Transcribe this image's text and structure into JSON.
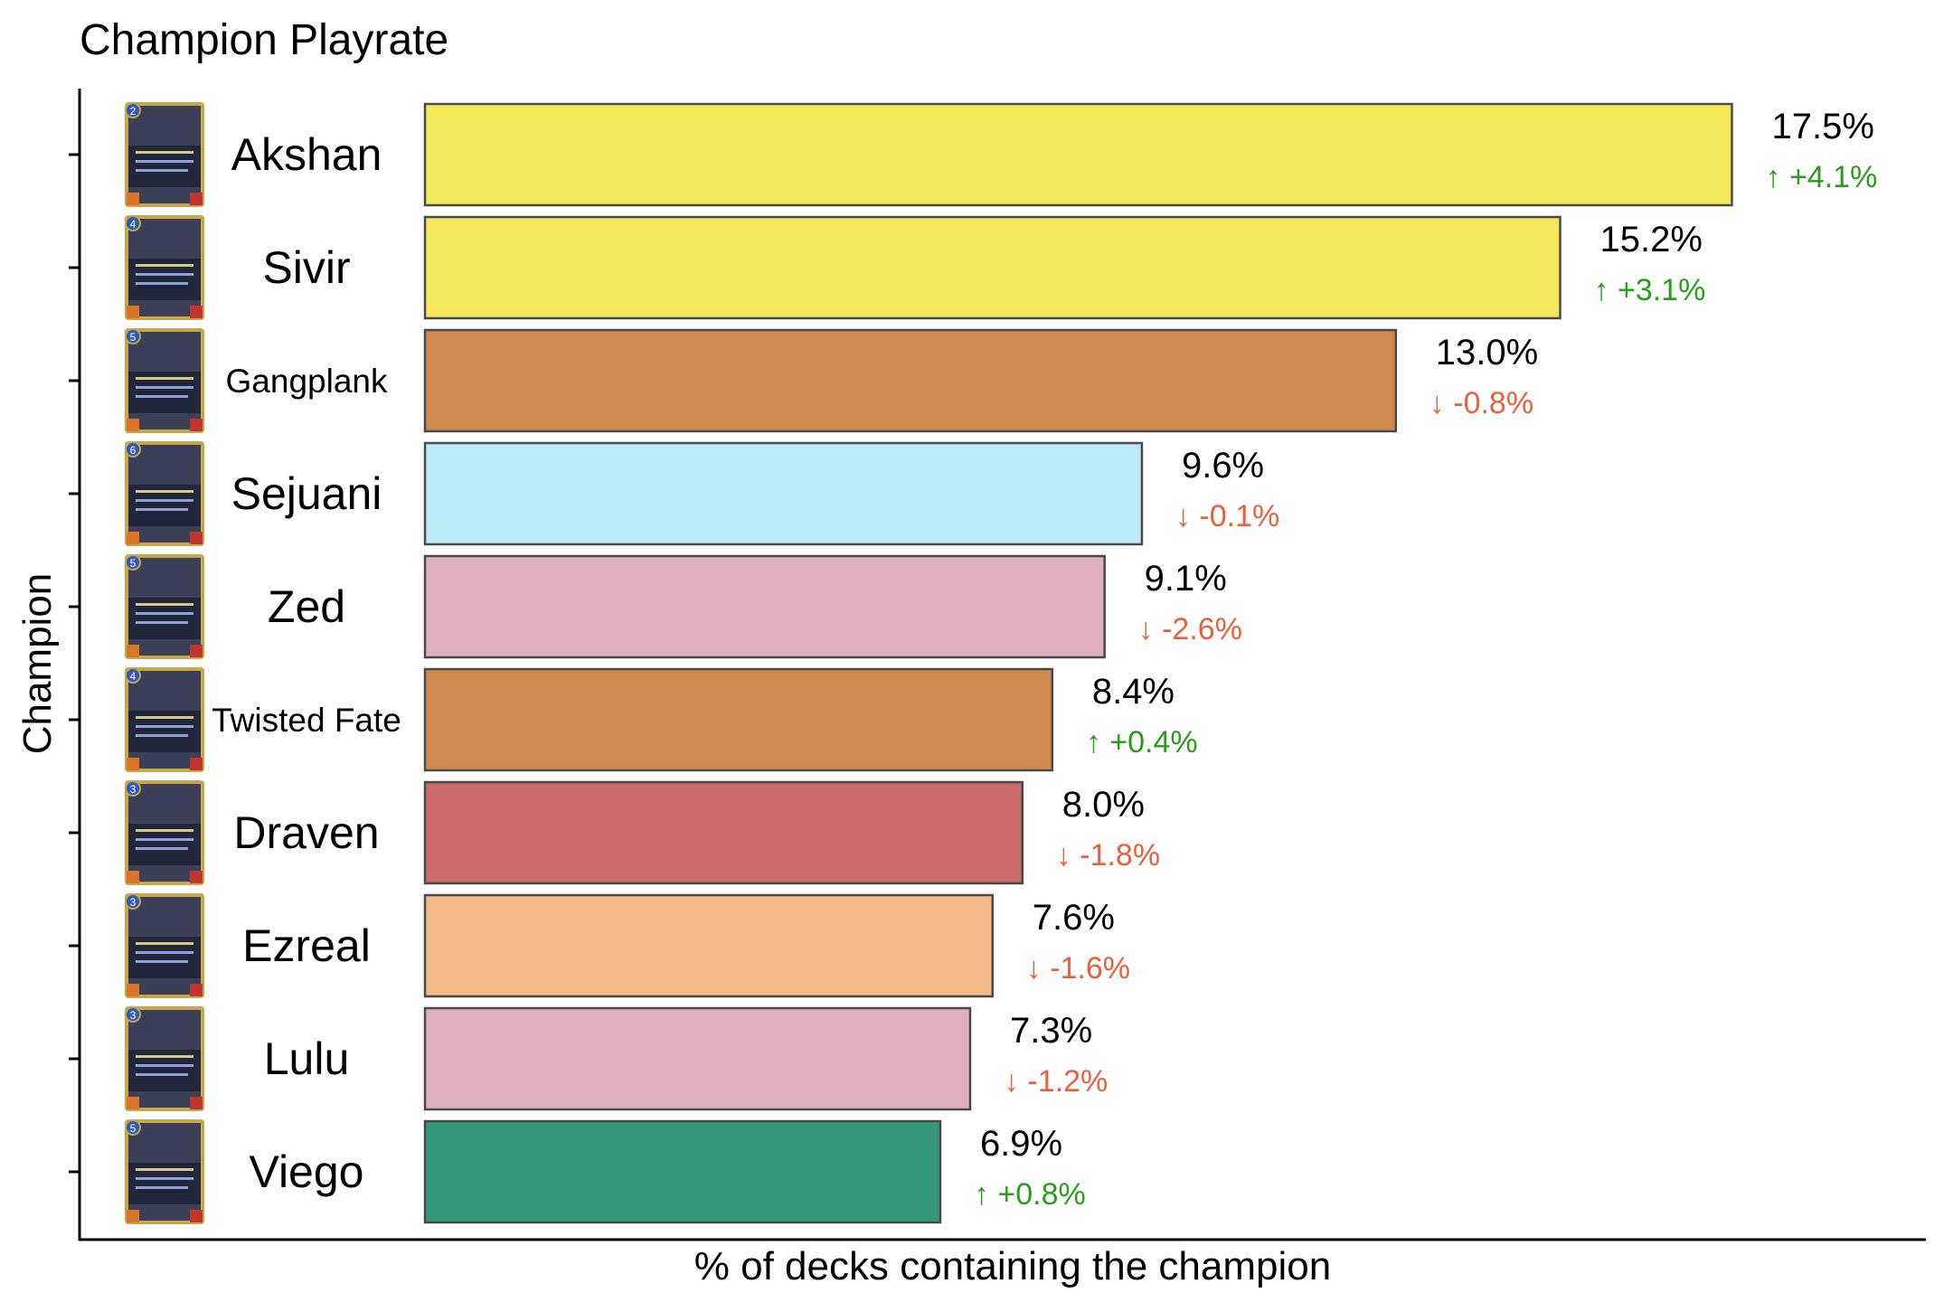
{
  "chart_data": {
    "type": "bar",
    "orientation": "horizontal",
    "title": "Champion Playrate",
    "xlabel": "% of decks containing the champion",
    "ylabel": "Champion",
    "categories": [
      "Akshan",
      "Sivir",
      "Gangplank",
      "Sejuani",
      "Zed",
      "Twisted Fate",
      "Draven",
      "Ezreal",
      "Lulu",
      "Viego"
    ],
    "values": [
      17.5,
      15.2,
      13.0,
      9.6,
      9.1,
      8.4,
      8.0,
      7.6,
      7.3,
      6.9
    ],
    "value_labels": [
      "17.5%",
      "15.2%",
      "13.0%",
      "9.6%",
      "9.1%",
      "8.4%",
      "8.0%",
      "7.6%",
      "7.3%",
      "6.9%"
    ],
    "change_labels": [
      "↑ +4.1%",
      "↑ +3.1%",
      "↓ -0.8%",
      "↓ -0.1%",
      "↓ -2.6%",
      "↑ +0.4%",
      "↓ -1.8%",
      "↓ -1.6%",
      "↓ -1.2%",
      "↑ +0.8%"
    ],
    "changes": [
      4.1,
      3.1,
      -0.8,
      -0.1,
      -2.6,
      0.4,
      -1.8,
      -1.6,
      -1.2,
      0.8
    ],
    "bar_colors": [
      "#f2e85a",
      "#f2e85a",
      "#d08a50",
      "#bbebf7",
      "#dfafc0",
      "#d08a50",
      "#cc6b6b",
      "#f5b987",
      "#dfafc0",
      "#35977a"
    ],
    "card_costs": [
      "2",
      "4",
      "5",
      "6",
      "5",
      "4",
      "3",
      "3",
      "3",
      "5"
    ],
    "xlim": [
      0,
      18
    ],
    "grid": false,
    "legend": "none",
    "colors": {
      "up": "#2a9d1b",
      "down": "#e8613c",
      "bar_border": "#4a4a4a"
    }
  }
}
